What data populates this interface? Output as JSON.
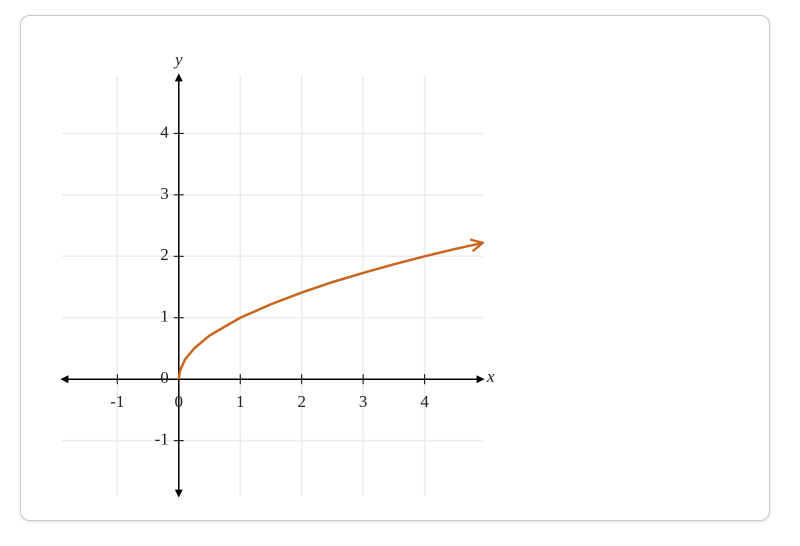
{
  "chart_data": {
    "type": "line",
    "x_label": "x",
    "y_label": "y",
    "xlim": [
      -1.9,
      4.95
    ],
    "ylim": [
      -1.9,
      4.95
    ],
    "xticks": [
      -1,
      0,
      1,
      2,
      3,
      4
    ],
    "yticks": [
      -1,
      0,
      1,
      2,
      3,
      4
    ],
    "grid": true,
    "series": [
      {
        "color": "#c8661f",
        "x": [
          0,
          0.02,
          0.1,
          0.25,
          0.5,
          1,
          1.5,
          2,
          2.5,
          3,
          3.5,
          4,
          4.5,
          4.95
        ],
        "values": [
          0,
          0.14,
          0.32,
          0.5,
          0.71,
          1,
          1.22,
          1.41,
          1.58,
          1.73,
          1.87,
          2,
          2.12,
          2.22
        ]
      }
    ]
  }
}
